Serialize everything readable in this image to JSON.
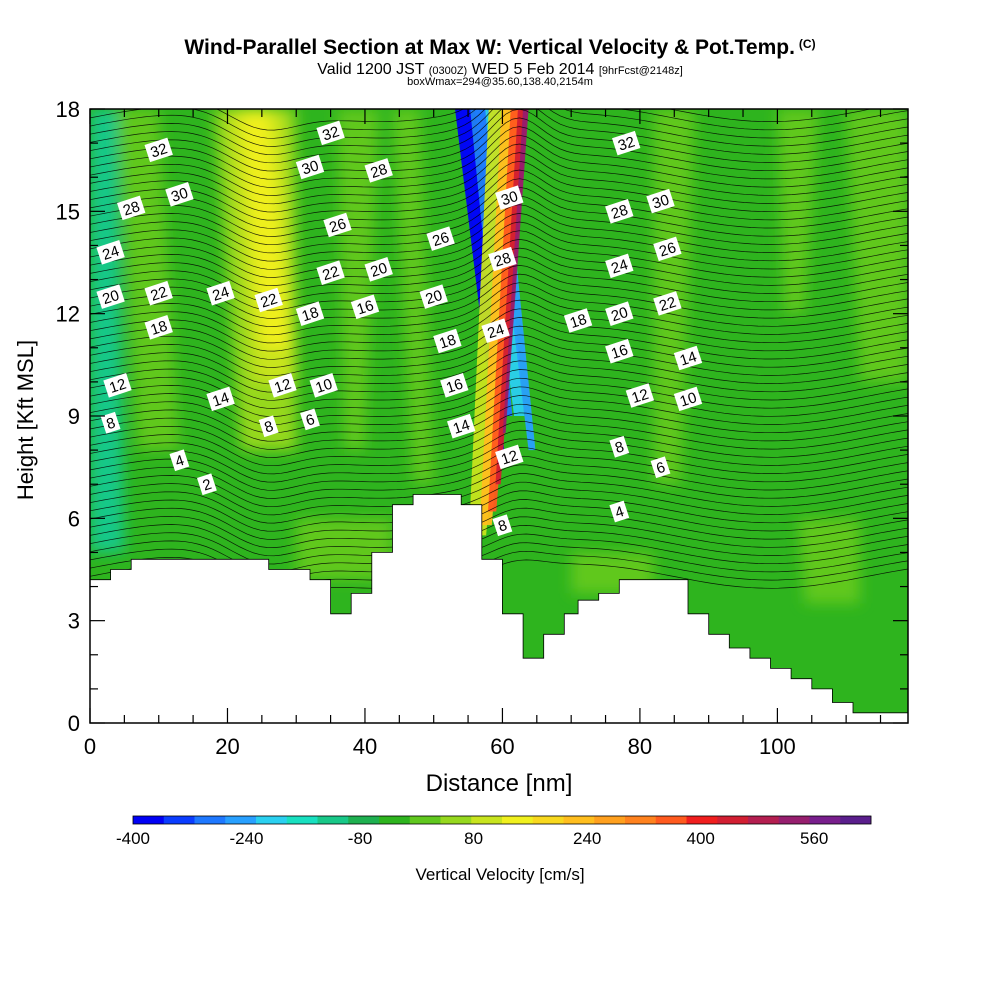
{
  "title": {
    "main": "Wind-Parallel Section at Max W: Vertical Velocity & Pot.Temp.",
    "mark": "(C)",
    "valid_a": "Valid 1200 JST",
    "valid_b": "(0300Z)",
    "valid_c": "WED 5 Feb 2014",
    "valid_d": "[9hrFcst@2148z]",
    "box": "boxWmax=294@35.60,138.40,2154m"
  },
  "chart_data": {
    "type": "cross-section contour",
    "xlabel": "Distance [nm]",
    "ylabel": "Height [Kft MSL]",
    "xlim": [
      0,
      119
    ],
    "ylim": [
      0,
      18
    ],
    "x_ticks": [
      0,
      20,
      40,
      60,
      80,
      100
    ],
    "y_ticks": [
      0,
      3,
      6,
      9,
      12,
      15,
      18
    ],
    "colorbar": {
      "label": "Vertical Velocity [cm/s]",
      "min": -400,
      "max": 640,
      "tick_values": [
        -400,
        -240,
        -80,
        80,
        240,
        400,
        560
      ],
      "tick_labels": [
        "-400",
        "-240",
        "-80",
        "80",
        "240",
        "400",
        "560"
      ],
      "colors": [
        "#0000f5",
        "#0a3cff",
        "#1e78ff",
        "#28a0ff",
        "#2ad0f0",
        "#18e0c0",
        "#18c888",
        "#1eb050",
        "#2eb41e",
        "#60c81e",
        "#96d81e",
        "#c8e41e",
        "#f0f01e",
        "#f8d81e",
        "#ffbe1e",
        "#ffa01e",
        "#ff821e",
        "#ff5a1e",
        "#f01e1e",
        "#d21e32",
        "#b41e50",
        "#961e6e",
        "#781e8c",
        "#5a1e8c"
      ]
    },
    "theta_labels": [
      {
        "text": "32",
        "x": 10,
        "y": 16.8
      },
      {
        "text": "30",
        "x": 13,
        "y": 15.5
      },
      {
        "text": "28",
        "x": 6,
        "y": 15.1
      },
      {
        "text": "24",
        "x": 3,
        "y": 13.8
      },
      {
        "text": "20",
        "x": 3,
        "y": 12.5
      },
      {
        "text": "22",
        "x": 10,
        "y": 12.6
      },
      {
        "text": "24",
        "x": 19,
        "y": 12.6
      },
      {
        "text": "18",
        "x": 10,
        "y": 11.6
      },
      {
        "text": "12",
        "x": 4,
        "y": 9.9
      },
      {
        "text": "8",
        "x": 3,
        "y": 8.8
      },
      {
        "text": "4",
        "x": 13,
        "y": 7.7
      },
      {
        "text": "2",
        "x": 17,
        "y": 7.0
      },
      {
        "text": "14",
        "x": 19,
        "y": 9.5
      },
      {
        "text": "22",
        "x": 26,
        "y": 12.4
      },
      {
        "text": "32",
        "x": 35,
        "y": 17.3
      },
      {
        "text": "30",
        "x": 32,
        "y": 16.3
      },
      {
        "text": "28",
        "x": 42,
        "y": 16.2
      },
      {
        "text": "26",
        "x": 36,
        "y": 14.6
      },
      {
        "text": "22",
        "x": 35,
        "y": 13.2
      },
      {
        "text": "20",
        "x": 42,
        "y": 13.3
      },
      {
        "text": "18",
        "x": 32,
        "y": 12.0
      },
      {
        "text": "16",
        "x": 40,
        "y": 12.2
      },
      {
        "text": "12",
        "x": 28,
        "y": 9.9
      },
      {
        "text": "10",
        "x": 34,
        "y": 9.9
      },
      {
        "text": "8",
        "x": 26,
        "y": 8.7
      },
      {
        "text": "6",
        "x": 32,
        "y": 8.9
      },
      {
        "text": "26",
        "x": 51,
        "y": 14.2
      },
      {
        "text": "20",
        "x": 50,
        "y": 12.5
      },
      {
        "text": "18",
        "x": 52,
        "y": 11.2
      },
      {
        "text": "16",
        "x": 53,
        "y": 9.9
      },
      {
        "text": "14",
        "x": 54,
        "y": 8.7
      },
      {
        "text": "30",
        "x": 61,
        "y": 15.4
      },
      {
        "text": "28",
        "x": 60,
        "y": 13.6
      },
      {
        "text": "24",
        "x": 59,
        "y": 11.5
      },
      {
        "text": "12",
        "x": 61,
        "y": 7.8
      },
      {
        "text": "8",
        "x": 60,
        "y": 5.8
      },
      {
        "text": "32",
        "x": 78,
        "y": 17.0
      },
      {
        "text": "30",
        "x": 83,
        "y": 15.3
      },
      {
        "text": "28",
        "x": 77,
        "y": 15.0
      },
      {
        "text": "26",
        "x": 84,
        "y": 13.9
      },
      {
        "text": "24",
        "x": 77,
        "y": 13.4
      },
      {
        "text": "22",
        "x": 84,
        "y": 12.3
      },
      {
        "text": "20",
        "x": 77,
        "y": 12.0
      },
      {
        "text": "18",
        "x": 71,
        "y": 11.8
      },
      {
        "text": "16",
        "x": 77,
        "y": 10.9
      },
      {
        "text": "14",
        "x": 87,
        "y": 10.7
      },
      {
        "text": "12",
        "x": 80,
        "y": 9.6
      },
      {
        "text": "10",
        "x": 87,
        "y": 9.5
      },
      {
        "text": "8",
        "x": 77,
        "y": 8.1
      },
      {
        "text": "6",
        "x": 83,
        "y": 7.5
      },
      {
        "text": "4",
        "x": 77,
        "y": 6.2
      }
    ],
    "terrain_profile": [
      [
        0,
        4.2
      ],
      [
        3,
        4.2
      ],
      [
        3,
        4.5
      ],
      [
        6,
        4.5
      ],
      [
        6,
        4.8
      ],
      [
        9,
        4.8
      ],
      [
        26,
        4.8
      ],
      [
        26,
        4.5
      ],
      [
        32,
        4.5
      ],
      [
        32,
        4.2
      ],
      [
        35,
        4.2
      ],
      [
        35,
        3.2
      ],
      [
        38,
        3.2
      ],
      [
        38,
        3.8
      ],
      [
        41,
        3.8
      ],
      [
        41,
        5.0
      ],
      [
        44,
        5.0
      ],
      [
        44,
        6.4
      ],
      [
        47,
        6.4
      ],
      [
        47,
        6.7
      ],
      [
        54,
        6.7
      ],
      [
        54,
        6.4
      ],
      [
        57,
        6.4
      ],
      [
        57,
        4.8
      ],
      [
        60,
        4.8
      ],
      [
        60,
        3.2
      ],
      [
        63,
        3.2
      ],
      [
        63,
        1.9
      ],
      [
        66,
        1.9
      ],
      [
        66,
        2.6
      ],
      [
        69,
        2.6
      ],
      [
        69,
        3.2
      ],
      [
        71,
        3.2
      ],
      [
        71,
        3.6
      ],
      [
        74,
        3.6
      ],
      [
        74,
        3.8
      ],
      [
        77,
        3.8
      ],
      [
        77,
        4.2
      ],
      [
        87,
        4.2
      ],
      [
        87,
        3.2
      ],
      [
        90,
        3.2
      ],
      [
        90,
        2.6
      ],
      [
        93,
        2.6
      ],
      [
        93,
        2.2
      ],
      [
        96,
        2.2
      ],
      [
        96,
        1.9
      ],
      [
        99,
        1.9
      ],
      [
        99,
        1.6
      ],
      [
        102,
        1.6
      ],
      [
        102,
        1.3
      ],
      [
        105,
        1.3
      ],
      [
        105,
        1.0
      ],
      [
        108,
        1.0
      ],
      [
        108,
        0.6
      ],
      [
        111,
        0.6
      ],
      [
        111,
        0.3
      ],
      [
        119,
        0.3
      ]
    ]
  }
}
